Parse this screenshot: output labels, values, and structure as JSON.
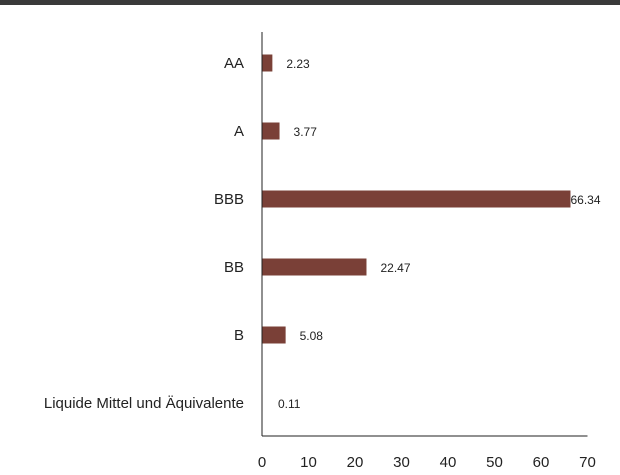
{
  "chart_data": {
    "type": "bar",
    "orientation": "horizontal",
    "categories": [
      "AA",
      "A",
      "BBB",
      "BB",
      "B",
      "Liquide Mittel und Äquivalente"
    ],
    "values": [
      2.23,
      3.77,
      66.34,
      22.47,
      5.08,
      0.11
    ],
    "value_labels": [
      "2.23",
      "3.77",
      "66.34",
      "22.47",
      "5.08",
      "0.11"
    ],
    "xlim": [
      0,
      70
    ],
    "xticks": [
      0,
      10,
      20,
      30,
      40,
      50,
      60,
      70
    ],
    "grid": false,
    "colors": {
      "bar": "#7a4037",
      "axis": "#222222",
      "top_bar": "#3a3a3a"
    }
  }
}
